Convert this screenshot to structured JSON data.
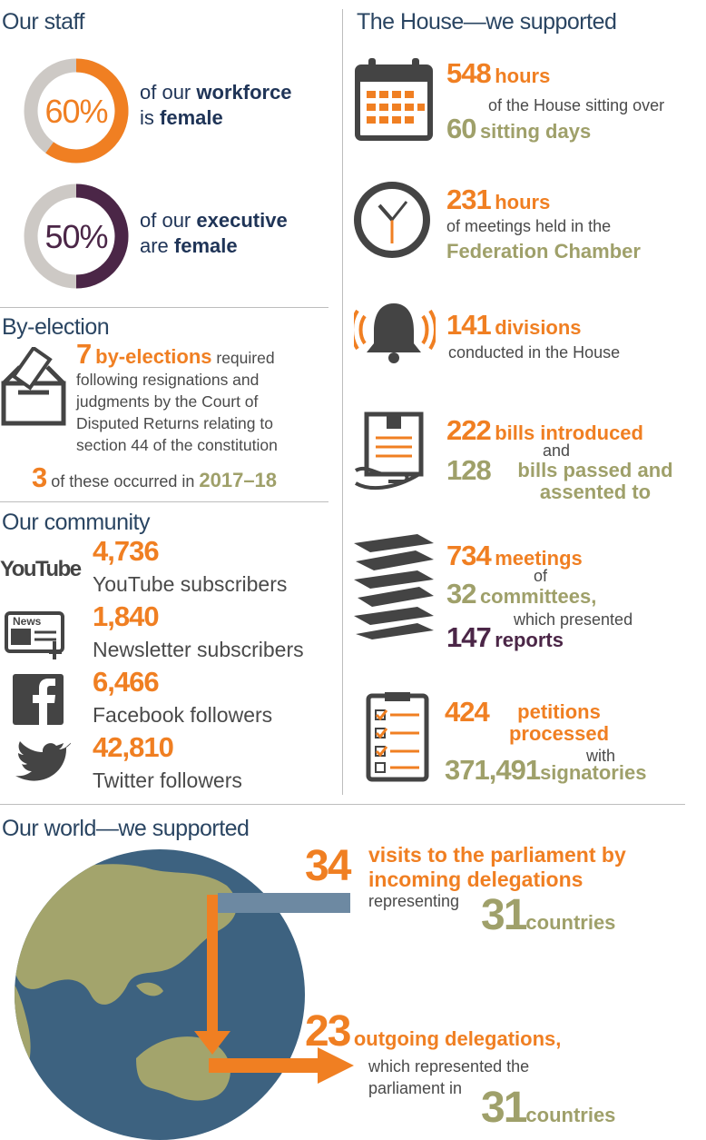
{
  "staff": {
    "title": "Our staff",
    "items": [
      {
        "percent": {
          "value": 60,
          "label": "60%"
        },
        "text1": "of our",
        "bold1": "workforce",
        "text2": "is",
        "bold2": "female"
      },
      {
        "percent": {
          "value": 50,
          "label": "50%"
        },
        "text1": "of our",
        "bold1": "executive",
        "text2": "are",
        "bold2": "female"
      }
    ]
  },
  "by_election": {
    "title": "By-election",
    "count": "7",
    "label": "by-elections",
    "text": "required following resignations and judgments by the Court of Disputed Returns relating to section 44 of the constitution",
    "occurred_count": "3",
    "occurred_text": "of these occurred in",
    "year": "2017–18"
  },
  "community": {
    "title": "Our community",
    "youtube_logo": "YouTube",
    "news_logo": "News",
    "items": [
      {
        "value": "4,736",
        "label": "YouTube subscribers"
      },
      {
        "value": "1,840",
        "label": "Newsletter subscribers"
      },
      {
        "value": "6,466",
        "label": "Facebook followers"
      },
      {
        "value": "42,810",
        "label": "Twitter followers"
      }
    ]
  },
  "house": {
    "title": "The House—we supported",
    "sitting": {
      "hours": "548",
      "hours_label": "hours",
      "text": "of the House sitting over",
      "days": "60",
      "days_label": "sitting days"
    },
    "chamber": {
      "hours": "231",
      "hours_label": "hours",
      "text": "of meetings held in the",
      "place": "Federation Chamber"
    },
    "divisions": {
      "count": "141",
      "label": "divisions",
      "text": "conducted in the House"
    },
    "bills": {
      "introduced": "222",
      "introduced_label": "bills introduced",
      "and": "and",
      "passed": "128",
      "passed_label": "bills passed and assented to"
    },
    "committees": {
      "meetings": "734",
      "meetings_label": "meetings",
      "of": "of",
      "committees": "32",
      "committees_label": "committees,",
      "text": "which presented",
      "reports": "147",
      "reports_label": "reports"
    },
    "petitions": {
      "count": "424",
      "label": "petitions processed",
      "with": "with",
      "signatories": "371,491",
      "signatories_label": "signatories"
    }
  },
  "world": {
    "title": "Our world—we supported",
    "incoming": {
      "visits": "34",
      "label": "visits to the parliament by incoming delegations",
      "text": "representing",
      "countries": "31",
      "countries_label": "countries"
    },
    "outgoing": {
      "count": "23",
      "label": "outgoing delegations,",
      "text": "which represented the parliament in",
      "countries": "31",
      "countries_label": "countries"
    }
  }
}
